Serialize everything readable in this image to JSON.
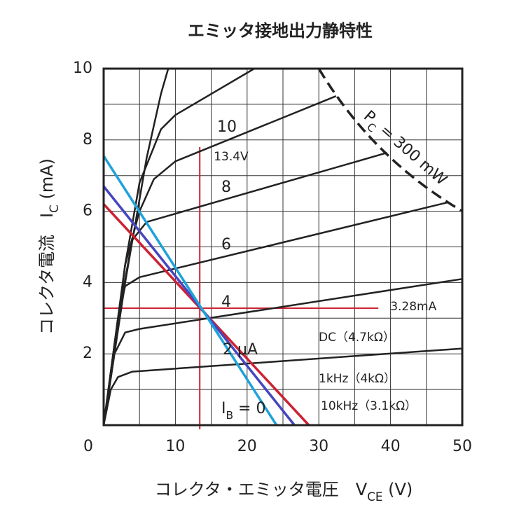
{
  "chart_data": {
    "type": "line",
    "title": "エミッタ接地出力静特性",
    "x_label": {
      "text": "コレクタ・エミッタ電圧　V",
      "sub": "CE",
      "tail": " (V)"
    },
    "y_label": {
      "text": "コレクタ電流　I",
      "sub": "C",
      "tail": " (mA)"
    },
    "xlim": [
      0,
      50
    ],
    "ylim": [
      0,
      10
    ],
    "xticks": [
      0,
      10,
      20,
      30,
      40,
      50
    ],
    "yticks": [
      2,
      4,
      6,
      8,
      10
    ],
    "xgrid": [
      5,
      10,
      15,
      20,
      25,
      30,
      35,
      40,
      45
    ],
    "ygrid": [
      1,
      2,
      3,
      4,
      5,
      6,
      7,
      8,
      9
    ],
    "grid": true,
    "series": [
      {
        "color": "#222222",
        "x": [
          0,
          50
        ],
        "values": [
          0,
          0
        ]
      },
      {
        "color": "#222222",
        "x": [
          0,
          1,
          2,
          4,
          50
        ],
        "values": [
          0,
          1,
          1.35,
          1.5,
          2.15
        ]
      },
      {
        "color": "#222222",
        "x": [
          0,
          1.5,
          3,
          5,
          50
        ],
        "values": [
          0,
          2,
          2.6,
          2.7,
          4.1
        ]
      },
      {
        "color": "#222222",
        "x": [
          0,
          2,
          3,
          5,
          48
        ],
        "values": [
          0,
          3,
          3.9,
          4.15,
          6.25
        ]
      },
      {
        "color": "#222222",
        "x": [
          0,
          2,
          4,
          6,
          39.5
        ],
        "values": [
          0,
          3,
          5.2,
          5.7,
          7.64
        ]
      },
      {
        "color": "#222222",
        "x": [
          0,
          3,
          5,
          7,
          10,
          32.4
        ],
        "values": [
          0,
          4.5,
          6,
          6.9,
          7.4,
          9.23
        ]
      },
      {
        "color": "#222222",
        "x": [
          0,
          3,
          5,
          8,
          10,
          21
        ],
        "values": [
          0,
          4.5,
          6.8,
          8.3,
          8.7,
          10
        ]
      },
      {
        "color": "#222222",
        "x": [
          0,
          3,
          6,
          8,
          9
        ],
        "values": [
          0,
          4,
          7.5,
          9.3,
          10
        ]
      },
      {
        "name": "DC（4.7kΩ）",
        "color": "#cc2233",
        "x": [
          0,
          28.6
        ],
        "values": [
          6.2,
          0
        ]
      },
      {
        "name": "1kHz（4kΩ）",
        "color": "#4646c0",
        "x": [
          0,
          26.6
        ],
        "values": [
          6.7,
          0
        ]
      },
      {
        "name": "10kHz（3.1kΩ）",
        "color": "#1ea2da",
        "x": [
          0,
          24.1
        ],
        "values": [
          7.55,
          0
        ]
      }
    ],
    "curve_labels": [
      "10",
      "8",
      "6",
      "4",
      "2 μA"
    ],
    "ib_label": {
      "text": "I",
      "sub": "B",
      "tail": " = 0"
    },
    "operating_point": {
      "x": 13.4,
      "y": 3.28,
      "x_label": "13.4V",
      "y_label": "3.28mA",
      "color": "#cc2233",
      "v_top": 7.8,
      "h_right": 38.3
    },
    "power_curve": {
      "value": 300,
      "label": {
        "text": "P",
        "sub": "C",
        "tail": " = 300 mW"
      }
    }
  }
}
